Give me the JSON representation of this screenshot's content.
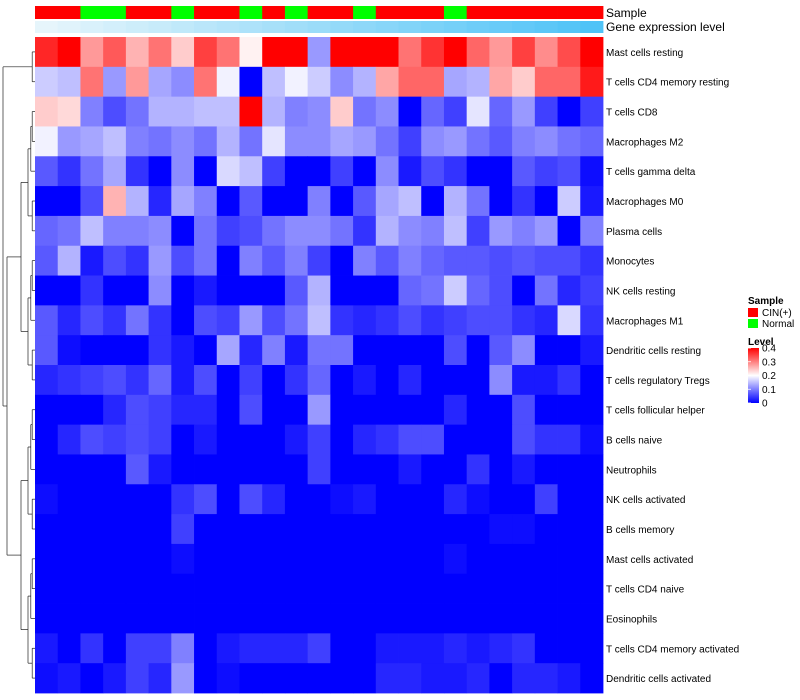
{
  "chart_data": {
    "type": "heatmap",
    "title": "",
    "annotation_tracks": [
      {
        "name": "Sample",
        "label": "Sample"
      },
      {
        "name": "Gene expression level",
        "label": "Gene expression level"
      }
    ],
    "sample_groups": [
      "CIN(+)",
      "CIN(+)",
      "Normal",
      "Normal",
      "CIN(+)",
      "CIN(+)",
      "Normal",
      "CIN(+)",
      "CIN(+)",
      "Normal",
      "CIN(+)",
      "Normal",
      "CIN(+)",
      "CIN(+)",
      "Normal",
      "CIN(+)",
      "CIN(+)",
      "CIN(+)",
      "Normal",
      "CIN(+)",
      "CIN(+)",
      "CIN(+)",
      "CIN(+)",
      "CIN(+)",
      "CIN(+)"
    ],
    "expression_level_track": [
      0.02,
      0.03,
      0.04,
      0.05,
      0.06,
      0.07,
      0.08,
      0.09,
      0.1,
      0.11,
      0.12,
      0.13,
      0.14,
      0.15,
      0.16,
      0.17,
      0.18,
      0.19,
      0.2,
      0.21,
      0.22,
      0.23,
      0.24,
      0.25,
      0.26
    ],
    "rows": [
      "Mast cells resting",
      "T cells CD4 memory resting",
      "T cells CD8",
      "Macrophages M2",
      "T cells gamma delta",
      "Macrophages M0",
      "Plasma cells",
      "Monocytes",
      "NK cells resting",
      "Macrophages M1",
      "Dendritic cells resting",
      "T cells regulatory  Tregs",
      "T cells follicular helper",
      "B cells naive",
      "Neutrophils",
      "NK cells activated",
      "B cells memory",
      "Mast cells activated",
      "T cells CD4 naive",
      "Eosinophils",
      "T cells CD4 memory activated",
      "Dendritic cells activated"
    ],
    "values": [
      [
        0.37,
        0.4,
        0.28,
        0.33,
        0.26,
        0.31,
        0.24,
        0.35,
        0.31,
        0.21,
        0.4,
        0.4,
        0.12,
        0.4,
        0.4,
        0.4,
        0.31,
        0.36,
        0.4,
        0.32,
        0.28,
        0.35,
        0.29,
        0.34,
        0.4
      ],
      [
        0.16,
        0.15,
        0.31,
        0.12,
        0.28,
        0.13,
        0.11,
        0.31,
        0.19,
        0.0,
        0.15,
        0.19,
        0.16,
        0.11,
        0.14,
        0.27,
        0.32,
        0.32,
        0.13,
        0.14,
        0.27,
        0.24,
        0.32,
        0.32,
        0.38
      ],
      [
        0.24,
        0.23,
        0.1,
        0.06,
        0.09,
        0.14,
        0.14,
        0.15,
        0.15,
        0.4,
        0.14,
        0.1,
        0.11,
        0.24,
        0.09,
        0.11,
        0.0,
        0.08,
        0.05,
        0.18,
        0.08,
        0.12,
        0.05,
        0.0,
        0.05
      ],
      [
        0.19,
        0.12,
        0.13,
        0.15,
        0.1,
        0.09,
        0.11,
        0.09,
        0.14,
        0.09,
        0.18,
        0.11,
        0.11,
        0.13,
        0.12,
        0.09,
        0.05,
        0.11,
        0.12,
        0.09,
        0.07,
        0.1,
        0.11,
        0.09,
        0.08
      ],
      [
        0.07,
        0.04,
        0.09,
        0.13,
        0.04,
        0.0,
        0.11,
        0.0,
        0.17,
        0.15,
        0.05,
        0.0,
        0.0,
        0.05,
        0.0,
        0.11,
        0.02,
        0.06,
        0.04,
        0.0,
        0.0,
        0.07,
        0.05,
        0.06,
        0.01
      ],
      [
        0.0,
        0.0,
        0.06,
        0.26,
        0.14,
        0.03,
        0.13,
        0.1,
        0.0,
        0.07,
        0.0,
        0.0,
        0.1,
        0.0,
        0.07,
        0.13,
        0.15,
        0.0,
        0.14,
        0.09,
        0.0,
        0.04,
        0.0,
        0.16,
        0.02
      ],
      [
        0.08,
        0.09,
        0.15,
        0.1,
        0.1,
        0.11,
        0.0,
        0.09,
        0.05,
        0.06,
        0.09,
        0.11,
        0.11,
        0.09,
        0.04,
        0.14,
        0.11,
        0.1,
        0.15,
        0.05,
        0.12,
        0.1,
        0.12,
        0.0,
        0.1
      ],
      [
        0.07,
        0.14,
        0.02,
        0.06,
        0.04,
        0.12,
        0.06,
        0.09,
        0.0,
        0.1,
        0.07,
        0.1,
        0.05,
        0.0,
        0.1,
        0.07,
        0.1,
        0.08,
        0.07,
        0.07,
        0.06,
        0.07,
        0.06,
        0.06,
        0.04
      ],
      [
        0.0,
        0.0,
        0.04,
        0.0,
        0.0,
        0.11,
        0.0,
        0.02,
        0.0,
        0.0,
        0.0,
        0.07,
        0.14,
        0.0,
        0.0,
        0.0,
        0.08,
        0.09,
        0.16,
        0.08,
        0.06,
        0.0,
        0.09,
        0.03,
        0.05
      ],
      [
        0.07,
        0.03,
        0.06,
        0.04,
        0.09,
        0.04,
        0.0,
        0.06,
        0.05,
        0.12,
        0.06,
        0.09,
        0.15,
        0.04,
        0.03,
        0.04,
        0.06,
        0.04,
        0.05,
        0.06,
        0.06,
        0.04,
        0.03,
        0.17,
        0.04
      ],
      [
        0.07,
        0.01,
        0.0,
        0.0,
        0.0,
        0.04,
        0.02,
        0.0,
        0.13,
        0.03,
        0.1,
        0.02,
        0.09,
        0.09,
        0.0,
        0.0,
        0.0,
        0.0,
        0.06,
        0.0,
        0.07,
        0.11,
        0.0,
        0.0,
        0.02
      ],
      [
        0.03,
        0.04,
        0.05,
        0.06,
        0.04,
        0.08,
        0.02,
        0.06,
        0.0,
        0.05,
        0.0,
        0.04,
        0.08,
        0.0,
        0.02,
        0.0,
        0.03,
        0.0,
        0.0,
        0.0,
        0.11,
        0.02,
        0.02,
        0.04,
        0.0
      ],
      [
        0.0,
        0.0,
        0.0,
        0.03,
        0.06,
        0.05,
        0.03,
        0.03,
        0.0,
        0.06,
        0.0,
        0.0,
        0.12,
        0.0,
        0.0,
        0.0,
        0.0,
        0.0,
        0.03,
        0.0,
        0.0,
        0.06,
        0.0,
        0.0,
        0.0
      ],
      [
        0.0,
        0.03,
        0.06,
        0.05,
        0.06,
        0.05,
        0.0,
        0.02,
        0.0,
        0.0,
        0.0,
        0.02,
        0.05,
        0.0,
        0.03,
        0.04,
        0.06,
        0.06,
        0.0,
        0.0,
        0.0,
        0.06,
        0.04,
        0.04,
        0.01
      ],
      [
        0.0,
        0.0,
        0.0,
        0.0,
        0.07,
        0.02,
        0.0,
        0.0,
        0.0,
        0.0,
        0.0,
        0.0,
        0.05,
        0.0,
        0.0,
        0.0,
        0.02,
        0.0,
        0.0,
        0.04,
        0.0,
        0.02,
        0.0,
        0.0,
        0.0
      ],
      [
        0.01,
        0.0,
        0.0,
        0.0,
        0.0,
        0.0,
        0.04,
        0.06,
        0.0,
        0.06,
        0.03,
        0.0,
        0.0,
        0.01,
        0.02,
        0.0,
        0.0,
        0.0,
        0.03,
        0.01,
        0.0,
        0.0,
        0.05,
        0.0,
        0.0
      ],
      [
        0.0,
        0.0,
        0.0,
        0.0,
        0.0,
        0.0,
        0.05,
        0.0,
        0.0,
        0.0,
        0.0,
        0.0,
        0.0,
        0.0,
        0.0,
        0.0,
        0.0,
        0.0,
        0.0,
        0.0,
        0.01,
        0.01,
        0.0,
        0.0,
        0.0
      ],
      [
        0.0,
        0.0,
        0.0,
        0.0,
        0.0,
        0.0,
        0.01,
        0.0,
        0.0,
        0.0,
        0.0,
        0.0,
        0.0,
        0.0,
        0.0,
        0.0,
        0.0,
        0.0,
        0.01,
        0.0,
        0.0,
        0.0,
        0.0,
        0.0,
        0.0
      ],
      [
        0.0,
        0.0,
        0.0,
        0.0,
        0.0,
        0.0,
        0.0,
        0.0,
        0.0,
        0.0,
        0.0,
        0.0,
        0.0,
        0.0,
        0.0,
        0.0,
        0.0,
        0.0,
        0.0,
        0.0,
        0.0,
        0.0,
        0.0,
        0.0,
        0.0
      ],
      [
        0.0,
        0.0,
        0.0,
        0.0,
        0.0,
        0.0,
        0.0,
        0.0,
        0.0,
        0.0,
        0.0,
        0.0,
        0.0,
        0.0,
        0.0,
        0.0,
        0.0,
        0.0,
        0.0,
        0.0,
        0.0,
        0.0,
        0.0,
        0.0,
        0.0
      ],
      [
        0.02,
        0.0,
        0.04,
        0.0,
        0.05,
        0.05,
        0.1,
        0.0,
        0.02,
        0.03,
        0.03,
        0.03,
        0.05,
        0.0,
        0.0,
        0.02,
        0.02,
        0.02,
        0.03,
        0.02,
        0.03,
        0.04,
        0.0,
        0.0,
        0.0
      ],
      [
        0.01,
        0.02,
        0.0,
        0.02,
        0.05,
        0.03,
        0.12,
        0.0,
        0.01,
        0.0,
        0.0,
        0.0,
        0.0,
        0.0,
        0.0,
        0.03,
        0.03,
        0.02,
        0.02,
        0.03,
        0.0,
        0.03,
        0.03,
        0.02,
        0.0
      ]
    ],
    "color_scale": {
      "min": 0,
      "mid": 0.2,
      "max": 0.4,
      "colors": [
        "#0000FF",
        "#FFFFFF",
        "#FF0000"
      ]
    },
    "legend": {
      "position": "right",
      "sample_title": "Sample",
      "sample_entries": [
        {
          "label": "CIN(+)",
          "color": "#FF0000"
        },
        {
          "label": "Normal",
          "color": "#00FF00"
        }
      ],
      "level_title": "Level",
      "level_ticks": [
        {
          "label": "0.4",
          "value": 0.4
        },
        {
          "label": "0.3",
          "value": 0.3
        },
        {
          "label": "0.2",
          "value": 0.2
        },
        {
          "label": "0.1",
          "value": 0.1
        },
        {
          "label": "0",
          "value": 0
        }
      ]
    },
    "expression_track_colors": [
      "#E6F5FB",
      "#4FC3F7"
    ],
    "row_dendrogram": true
  }
}
